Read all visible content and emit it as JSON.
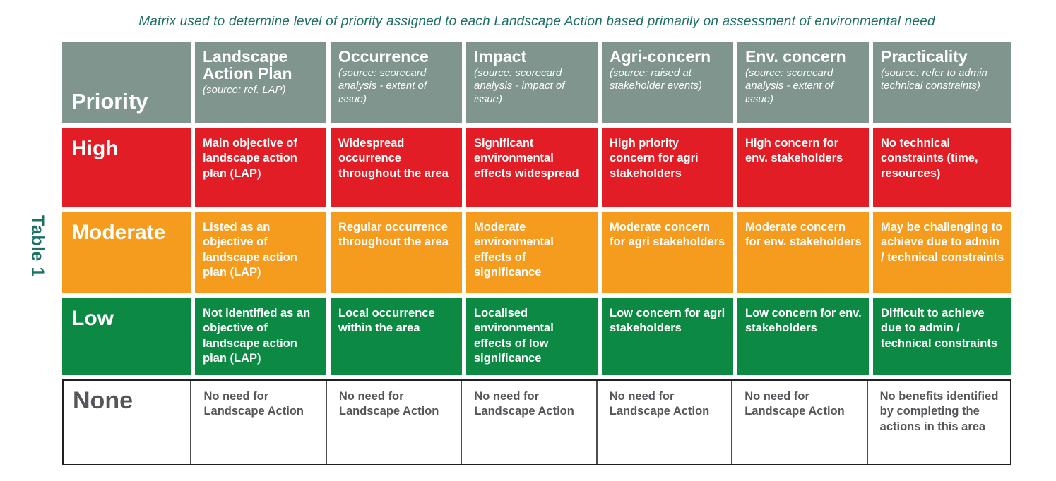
{
  "title": "Matrix used to determine level of priority assigned to each Landscape Action based primarily on assessment of environmental need",
  "table_label": "Table 1",
  "colors": {
    "header_bg": "#7f958e",
    "high": "#e21d25",
    "moderate": "#f59b1e",
    "low": "#0c8a44",
    "none_border": "#231f20",
    "none_text": "#55565a",
    "title_text": "#1e6f64"
  },
  "header": {
    "priority_label": "Priority",
    "columns": [
      {
        "title": "Landscape Action Plan",
        "source": "(source: ref. LAP)"
      },
      {
        "title": "Occurrence",
        "source": "(source: scorecard analysis - extent of issue)"
      },
      {
        "title": "Impact",
        "source": "(source: scorecard analysis - impact of issue)"
      },
      {
        "title": "Agri-concern",
        "source": "(source: raised at stakeholder events)"
      },
      {
        "title": "Env. concern",
        "source": "(source: scorecard analysis - extent of issue)"
      },
      {
        "title": "Practicality",
        "source": "(source: refer to admin technical constraints)"
      }
    ]
  },
  "rows": [
    {
      "level": "High",
      "cells": [
        "Main objective of landscape action plan (LAP)",
        "Widespread occurrence throughout the area",
        "Significant environmental effects widespread",
        "High priority concern for agri stakeholders",
        "High concern for env. stakeholders",
        "No technical constraints (time, resources)"
      ]
    },
    {
      "level": "Moderate",
      "cells": [
        "Listed as an objective of landscape action plan (LAP)",
        "Regular occurrence throughout the area",
        "Moderate environmental effects of significance",
        "Moderate concern for agri stakeholders",
        "Moderate concern for env. stakeholders",
        "May be challenging to achieve due to admin / technical constraints"
      ]
    },
    {
      "level": "Low",
      "cells": [
        "Not identified as an objective of landscape action plan (LAP)",
        "Local occurrence within the area",
        "Localised environmental effects of low significance",
        "Low concern for agri stakeholders",
        "Low concern for env. stakeholders",
        "Difficult to achieve due to admin / technical constraints"
      ]
    },
    {
      "level": "None",
      "cells": [
        "No need for Landscape Action",
        "No need for Landscape Action",
        "No need for Landscape Action",
        "No need for Landscape Action",
        "No need for Landscape Action",
        "No benefits identified by completing the actions in this area"
      ]
    }
  ]
}
